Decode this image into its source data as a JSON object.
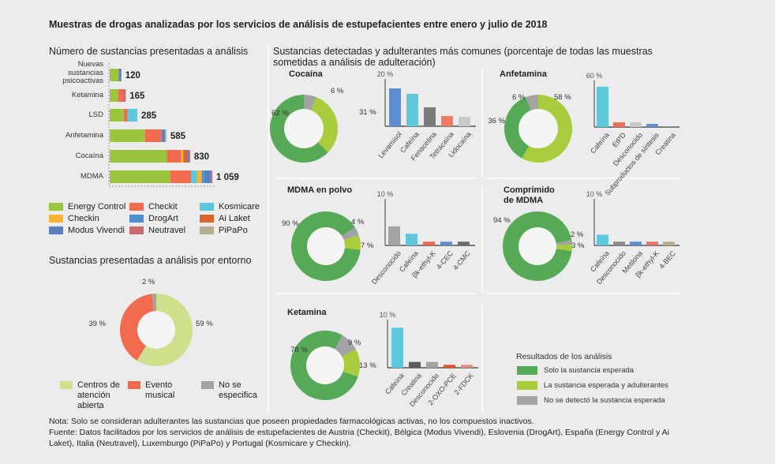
{
  "title": "Muestras de drogas analizadas por los servicios de análisis de estupefacientes entre enero y julio de 2018",
  "notes": {
    "nota": "Nota: Solo se consideran adulterantes las sustancias que poseen propiedades farmacológicas activas, no los compuestos inactivos.",
    "fuente": "Fuente: Datos facilitados por los servicios de análisis de estupefacientes de Austria (Checkit), Bélgica (Modus Vivendi), Eslovenia (DrogArt), España (Energy Control y Ai Laket), Italia (Neutravel), Luxemburgo (PiPaPo) y Portugal (Kosmicare y Checkin)."
  },
  "adulteration_title": "Sustancias detectadas y adulterantes más comunes (porcentaje de todas las muestras sometidas a análisis de adulteración)",
  "results_legend": {
    "title": "Resultados de los análisis",
    "items": [
      {
        "label": "Solo la sustancia esperada",
        "color": "#56a955"
      },
      {
        "label": "La sustancia esperada y adulterantes",
        "color": "#a9cc3c"
      },
      {
        "label": "No se detectó la sustancia esperada",
        "color": "#a3a3a5"
      }
    ]
  },
  "chart_data": [
    {
      "id": "substances",
      "type": "bar",
      "orientation": "horizontal",
      "stacked": true,
      "title": "Número de sustancias presentadas a análisis",
      "categories": [
        "Nuevas sustancias psicoactivas",
        "Ketamina",
        "LSD",
        "Anfetamina",
        "Cocaína",
        "MDMA"
      ],
      "totals": [
        "120",
        "165",
        "285",
        "585",
        "830",
        "1 059"
      ],
      "legend": "bottom",
      "series": [
        {
          "name": "Energy Control",
          "color": "#9bc53d",
          "values": [
            95,
            90,
            145,
            365,
            590,
            625
          ]
        },
        {
          "name": "Checkit",
          "color": "#f26b4f",
          "values": [
            0,
            45,
            40,
            170,
            145,
            215
          ]
        },
        {
          "name": "Kosmicare",
          "color": "#5fc7dc",
          "values": [
            0,
            0,
            100,
            0,
            0,
            60
          ]
        },
        {
          "name": "Checkin",
          "color": "#f8b335",
          "values": [
            0,
            0,
            0,
            0,
            25,
            50
          ]
        },
        {
          "name": "DrogArt",
          "color": "#4d8fd1",
          "values": [
            0,
            0,
            0,
            15,
            0,
            25
          ]
        },
        {
          "name": "Ai Laket",
          "color": "#d9662e",
          "values": [
            0,
            0,
            0,
            0,
            40,
            0
          ]
        },
        {
          "name": "Modus Vivendi",
          "color": "#5b7fbe",
          "values": [
            25,
            0,
            0,
            20,
            15,
            70
          ]
        },
        {
          "name": "Neutravel",
          "color": "#c86b70",
          "values": [
            0,
            30,
            0,
            0,
            15,
            14
          ]
        },
        {
          "name": "PiPaPo",
          "color": "#b5ad8c",
          "values": [
            0,
            0,
            0,
            15,
            0,
            0
          ]
        }
      ]
    },
    {
      "id": "environment",
      "type": "pie",
      "title": "Sustancias presentadas a análisis por entorno",
      "slices": [
        {
          "label": "Centros de atención abierta",
          "value": 59,
          "text": "59 %",
          "color": "#cfe08c"
        },
        {
          "label": "Evento musical",
          "value": 39,
          "text": "39 %",
          "color": "#f26b4f"
        },
        {
          "label": "No se especifica",
          "value": 2,
          "text": "2 %",
          "color": "#a3a3a5"
        }
      ]
    },
    {
      "id": "cocaina",
      "type": "pie",
      "title": "Cocaína",
      "slices": [
        {
          "label": "No se detectó la sustancia esperada",
          "value": 6,
          "text": "6 %",
          "color": "#a3a3a5"
        },
        {
          "label": "La sustancia esperada y adulterantes",
          "value": 31,
          "text": "31 %",
          "color": "#a9cc3c"
        },
        {
          "label": "Solo la sustancia esperada",
          "value": 62,
          "text": "62 %",
          "color": "#56a955"
        }
      ],
      "bars": {
        "type": "bar",
        "ymax_label": "20 %",
        "ylim": [
          0,
          20
        ],
        "categories": [
          "Levamisol",
          "Cafeína",
          "Fenacetina",
          "Tetracaína",
          "Lidocaína"
        ],
        "values": [
          16,
          13.7,
          8,
          4.3,
          4
        ],
        "colors": [
          "#5b8fd1",
          "#5fc7dc",
          "#7b7b7d",
          "#ef7a62",
          "#c9c9cb"
        ]
      }
    },
    {
      "id": "anfetamina",
      "type": "pie",
      "title": "Anfetamina",
      "slices": [
        {
          "label": "La sustancia esperada y adulterantes",
          "value": 58,
          "text": "58 %",
          "color": "#a9cc3c"
        },
        {
          "label": "Solo la sustancia esperada",
          "value": 36,
          "text": "36 %",
          "color": "#56a955"
        },
        {
          "label": "No se detectó la sustancia esperada",
          "value": 6,
          "text": "6 %",
          "color": "#a3a3a5"
        }
      ],
      "bars": {
        "type": "bar",
        "ymax_label": "60 %",
        "ylim": [
          0,
          60
        ],
        "categories": [
          "Cafeína",
          "EtPD",
          "Desconocido",
          "Subproductos de síntesis",
          "Creatina"
        ],
        "values": [
          52,
          6,
          6,
          4,
          0.5
        ],
        "colors": [
          "#5fc7dc",
          "#ef6b4f",
          "#c9c9cb",
          "#5b8fd1",
          "#7b7b7d"
        ]
      }
    },
    {
      "id": "mdma-polvo",
      "type": "pie",
      "title": "MDMA en polvo",
      "slices": [
        {
          "label": "No se detectó la sustancia esperada",
          "value": 4,
          "text": "4 %",
          "color": "#a3a3a5"
        },
        {
          "label": "La sustancia esperada y adulterantes",
          "value": 7,
          "text": "7 %",
          "color": "#a9cc3c"
        },
        {
          "label": "Solo la sustancia esperada",
          "value": 90,
          "text": "90 %",
          "color": "#56a955"
        }
      ],
      "bars": {
        "type": "bar",
        "ymax_label": "10 %",
        "ylim": [
          0,
          10
        ],
        "categories": [
          "Desconocido",
          "Cafeína",
          "βk-ethyl-K",
          "4-CEC",
          "4-CMC"
        ],
        "values": [
          4.1,
          2.5,
          0.8,
          0.8,
          0.8
        ],
        "colors": [
          "#a3a3a5",
          "#5fc7dc",
          "#ef6b4f",
          "#5b8fd1",
          "#6b6b6d"
        ]
      }
    },
    {
      "id": "mdma-comprimido",
      "type": "pie",
      "title": "Comprimido de MDMA",
      "slices": [
        {
          "label": "No se detectó la sustancia esperada",
          "value": 2,
          "text": "2 %",
          "color": "#a3a3a5"
        },
        {
          "label": "La sustancia esperada y adulterantes",
          "value": 3,
          "text": "3 %",
          "color": "#a9cc3c"
        },
        {
          "label": "Solo la sustancia esperada",
          "value": 94,
          "text": "94 %",
          "color": "#56a955"
        }
      ],
      "bars": {
        "type": "bar",
        "ymax_label": "10 %",
        "ylim": [
          0,
          10
        ],
        "categories": [
          "Cafeína",
          "Desconocido",
          "Metilona",
          "βk-ethyl-K",
          "4-BEC"
        ],
        "values": [
          2.3,
          0.8,
          0.8,
          0.8,
          0.8
        ],
        "colors": [
          "#5fc7dc",
          "#8b8b8d",
          "#5b8fd1",
          "#e8756a",
          "#b5ad8c"
        ]
      }
    },
    {
      "id": "ketamina",
      "type": "pie",
      "title": "Ketamina",
      "slices": [
        {
          "label": "No se detectó la sustancia esperada",
          "value": 9,
          "text": "9 %",
          "color": "#a3a3a5"
        },
        {
          "label": "La sustancia esperada y adulterantes",
          "value": 13,
          "text": "13 %",
          "color": "#a9cc3c"
        },
        {
          "label": "Solo la sustancia esperada",
          "value": 78,
          "text": "78 %",
          "color": "#56a955"
        }
      ],
      "bars": {
        "type": "bar",
        "ymax_label": "10 %",
        "ylim": [
          0,
          10
        ],
        "categories": [
          "Cafeína",
          "Creatina",
          "Desconocido",
          "2-OXO-PCE",
          "2-FDCK"
        ],
        "values": [
          8.3,
          1.2,
          1.2,
          0.6,
          0.6
        ],
        "colors": [
          "#5fc7dc",
          "#5b5b5d",
          "#a3a3a5",
          "#e0532f",
          "#e88a80"
        ]
      }
    }
  ]
}
